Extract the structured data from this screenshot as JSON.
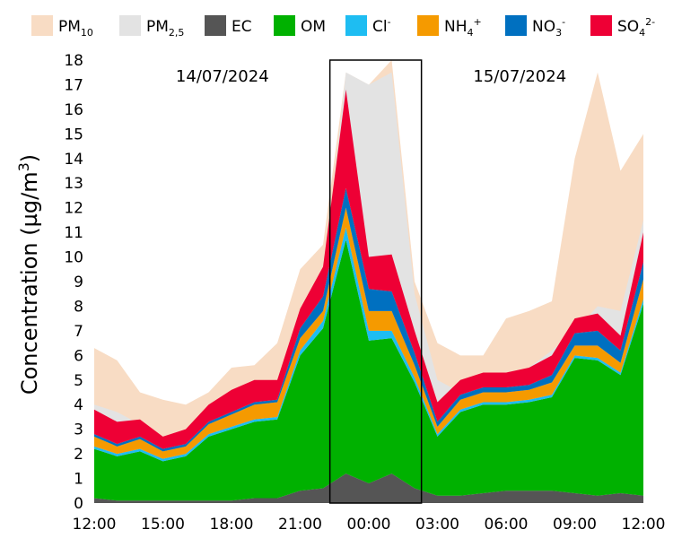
{
  "chart_data": {
    "type": "area",
    "title": "",
    "ylabel": "Concentration (µg/m³)",
    "ylabel_parts": {
      "main": "Concentration (µg/m",
      "sup": "3",
      "end": ")"
    },
    "xlabel": "",
    "ylim": [
      0,
      18
    ],
    "yticks": [
      "0",
      "1",
      "2",
      "3",
      "4",
      "5",
      "6",
      "7",
      "8",
      "9",
      "10",
      "11",
      "12",
      "13",
      "14",
      "15",
      "16",
      "17",
      "18"
    ],
    "x_hours": [
      12,
      13,
      14,
      15,
      16,
      17,
      18,
      19,
      20,
      21,
      22,
      23,
      24,
      25,
      26,
      27,
      28,
      29,
      30,
      31,
      32,
      33,
      34,
      35,
      36
    ],
    "xticks": [
      {
        "hour": 12,
        "label": "12:00"
      },
      {
        "hour": 15,
        "label": "15:00"
      },
      {
        "hour": 18,
        "label": "18:00"
      },
      {
        "hour": 21,
        "label": "21:00"
      },
      {
        "hour": 24,
        "label": "00:00"
      },
      {
        "hour": 27,
        "label": "03:00"
      },
      {
        "hour": 30,
        "label": "06:00"
      },
      {
        "hour": 33,
        "label": "09:00"
      },
      {
        "hour": 36,
        "label": "12:00"
      }
    ],
    "date_labels": [
      {
        "hour": 17.6,
        "text": "14/07/2024"
      },
      {
        "hour": 30.6,
        "text": "15/07/2024"
      }
    ],
    "highlight_box": {
      "x_start": 22.3,
      "x_end": 26.3,
      "y_top": 18
    },
    "colors": {
      "PM10": "#f8dcc4",
      "PM25": "#e3e3e3",
      "EC": "#555555",
      "OM": "#00b100",
      "Cl": "#1ebdf2",
      "NH4": "#f59a00",
      "NO3": "#0070c0",
      "SO4": "#ee0035"
    },
    "legend": [
      {
        "key": "PM10",
        "base": "PM",
        "sub": "10",
        "sup": ""
      },
      {
        "key": "PM25",
        "base": "PM",
        "sub": "2,5",
        "sup": ""
      },
      {
        "key": "EC",
        "base": "EC",
        "sub": "",
        "sup": ""
      },
      {
        "key": "OM",
        "base": "OM",
        "sub": "",
        "sup": ""
      },
      {
        "key": "Cl",
        "base": "Cl",
        "sub": "",
        "sup": "-"
      },
      {
        "key": "NH4",
        "base": "NH",
        "sub": "4",
        "sup": "+"
      },
      {
        "key": "NO3",
        "base": "NO",
        "sub": "3",
        "sup": "-"
      },
      {
        "key": "SO4",
        "base": "SO",
        "sub": "4",
        "sup": "2-"
      }
    ],
    "stack_order": [
      "EC",
      "OM",
      "Cl",
      "NH4",
      "NO3",
      "SO4"
    ],
    "series": {
      "PM10": [
        6.3,
        5.8,
        4.5,
        4.2,
        4.0,
        4.5,
        5.5,
        5.6,
        6.5,
        9.5,
        10.5,
        17.5,
        17.0,
        18.0,
        9.0,
        6.5,
        6.0,
        6.0,
        7.5,
        7.8,
        8.2,
        14.0,
        17.5,
        13.5,
        15.0
      ],
      "PM25": [
        4.0,
        3.7,
        3.2,
        2.7,
        3.0,
        3.7,
        4.5,
        4.5,
        4.5,
        7.5,
        9.0,
        17.5,
        17.0,
        17.5,
        8.5,
        5.0,
        4.5,
        4.8,
        5.2,
        5.5,
        6.2,
        7.0,
        8.0,
        7.8,
        11.5
      ],
      "EC": [
        0.2,
        0.1,
        0.1,
        0.1,
        0.1,
        0.1,
        0.1,
        0.2,
        0.2,
        0.5,
        0.6,
        1.2,
        0.8,
        1.2,
        0.6,
        0.3,
        0.3,
        0.4,
        0.5,
        0.5,
        0.5,
        0.4,
        0.3,
        0.4,
        0.3
      ],
      "OM": [
        2.0,
        1.8,
        2.0,
        1.6,
        1.8,
        2.6,
        2.9,
        3.1,
        3.2,
        5.5,
        6.5,
        9.5,
        5.8,
        5.5,
        4.3,
        2.4,
        3.4,
        3.6,
        3.5,
        3.6,
        3.8,
        5.5,
        5.5,
        4.8,
        7.8
      ],
      "Cl": [
        0.1,
        0.1,
        0.1,
        0.1,
        0.1,
        0.1,
        0.1,
        0.1,
        0.1,
        0.2,
        0.3,
        0.5,
        0.4,
        0.3,
        0.2,
        0.1,
        0.1,
        0.1,
        0.1,
        0.1,
        0.1,
        0.1,
        0.1,
        0.1,
        0.2
      ],
      "NH4": [
        0.4,
        0.3,
        0.4,
        0.3,
        0.3,
        0.4,
        0.5,
        0.6,
        0.6,
        0.5,
        0.4,
        0.8,
        0.8,
        0.8,
        0.5,
        0.3,
        0.4,
        0.4,
        0.4,
        0.4,
        0.5,
        0.4,
        0.5,
        0.4,
        0.8
      ],
      "NO3": [
        0.1,
        0.1,
        0.1,
        0.1,
        0.1,
        0.1,
        0.1,
        0.1,
        0.1,
        0.4,
        0.6,
        0.8,
        0.9,
        0.8,
        0.5,
        0.2,
        0.2,
        0.2,
        0.2,
        0.2,
        0.3,
        0.5,
        0.6,
        0.5,
        0.7
      ],
      "SO4": [
        1.0,
        0.9,
        0.7,
        0.5,
        0.6,
        0.7,
        0.9,
        0.9,
        0.8,
        0.8,
        1.2,
        4.0,
        1.3,
        1.5,
        0.9,
        0.8,
        0.6,
        0.6,
        0.6,
        0.7,
        0.8,
        0.6,
        0.7,
        0.6,
        1.2
      ]
    }
  }
}
